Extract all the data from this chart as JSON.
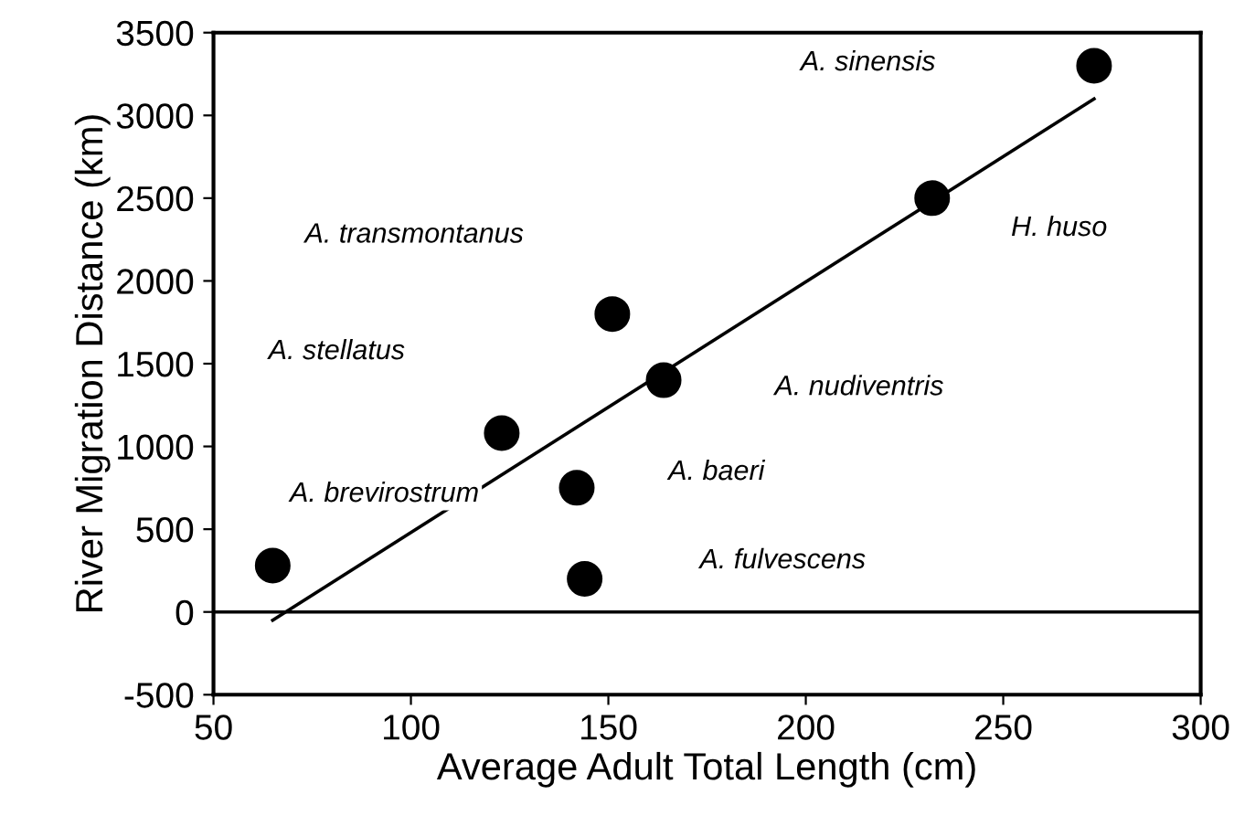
{
  "chart_data": {
    "type": "scatter",
    "xlabel": "Average Adult Total Length (cm)",
    "ylabel": "River Migration Distance (km)",
    "xlim": [
      50,
      300
    ],
    "xticks": [
      50,
      100,
      150,
      200,
      250,
      300
    ],
    "ylim": [
      -500,
      3500
    ],
    "yticks": [
      -500,
      0,
      500,
      1000,
      1500,
      2000,
      2500,
      3000,
      3500
    ],
    "grid": false,
    "legend": false,
    "series": [
      {
        "color": "#000000",
        "marker": "circle",
        "x": [
          65,
          123,
          151,
          164,
          142,
          144,
          232,
          273
        ],
        "values": [
          280,
          1080,
          1800,
          1400,
          750,
          200,
          2500,
          3300
        ]
      },
      {
        "type": "line",
        "color": "#000000",
        "marker": "none",
        "x": [
          65,
          273
        ],
        "values": [
          -50,
          3100
        ]
      }
    ],
    "ref_lines": [
      {
        "axis": "y",
        "value": 0,
        "color": "#000000"
      }
    ],
    "annotations": [
      "A. brevirostrum",
      "A. stellatus",
      "A. transmontanus",
      "A. nudiventris",
      "A. baeri",
      "A. fulvescens",
      "H. huso",
      "A. sinensis"
    ]
  }
}
